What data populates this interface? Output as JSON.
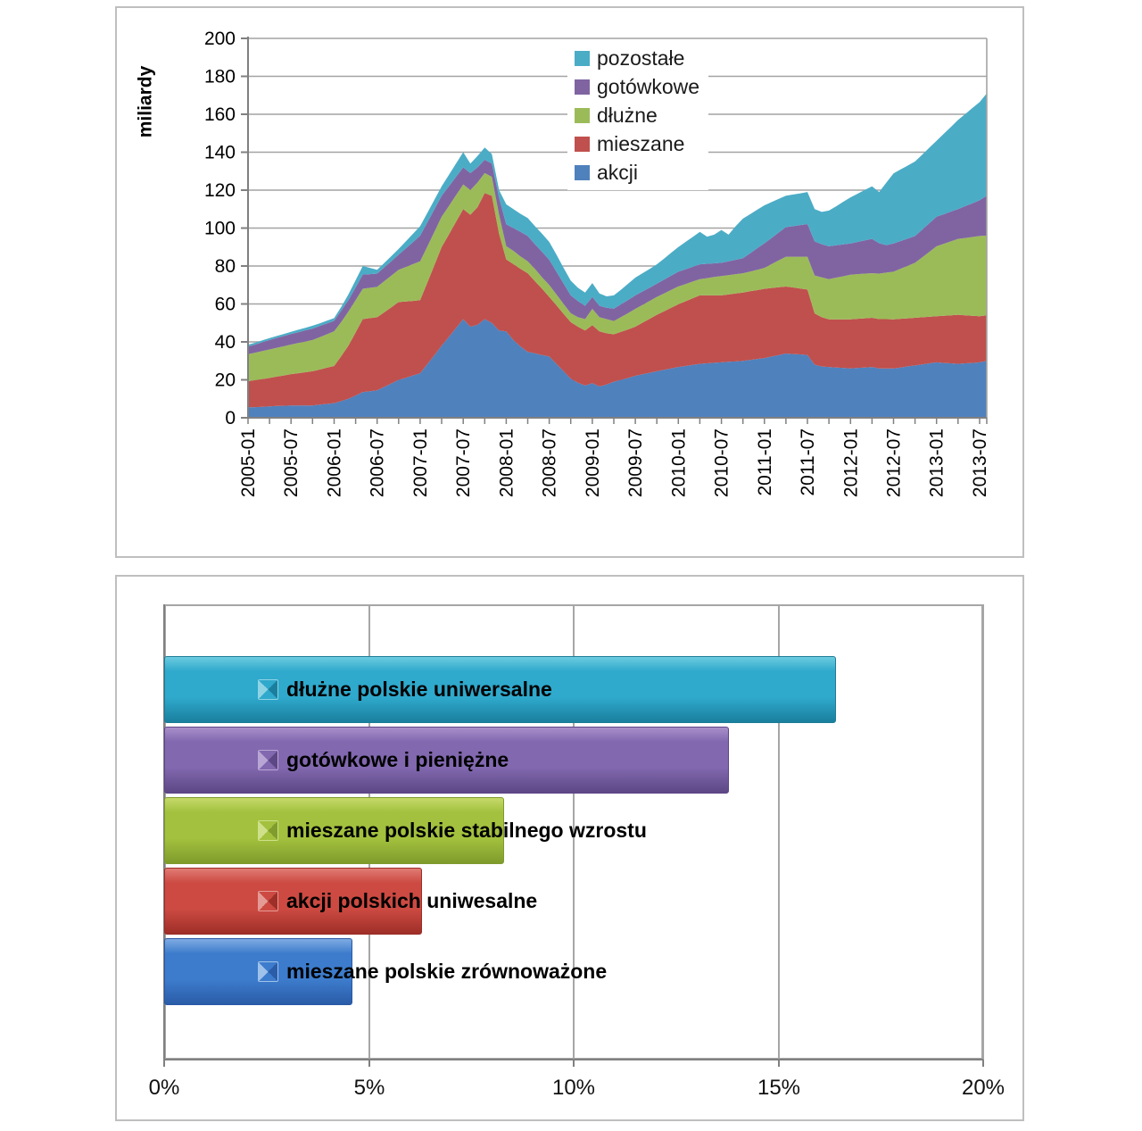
{
  "page": {
    "background": "#FFFFFF"
  },
  "chart_data": [
    {
      "type": "area",
      "stacked": true,
      "title": "",
      "ylabel": "miliardy",
      "xlabel": "",
      "ylim": [
        0,
        200
      ],
      "ytick_step": 20,
      "y_tick_labels": [
        "0",
        "20",
        "40",
        "60",
        "80",
        "100",
        "120",
        "140",
        "160",
        "180",
        "200"
      ],
      "x_tick_labels": [
        "2005-01",
        "2005-07",
        "2006-01",
        "2006-07",
        "2007-01",
        "2007-07",
        "2008-01",
        "2008-07",
        "2009-01",
        "2009-07",
        "2010-01",
        "2010-07",
        "2011-01",
        "2011-07",
        "2012-01",
        "2012-07",
        "2013-01",
        "2013-07"
      ],
      "x_start": "2005-01",
      "x_end": "2013-08",
      "x_months_total": 104,
      "grid": "horizontal",
      "grid_color": "#A3A3A3",
      "axis_color": "#808080",
      "legend_position": "inside-top-center",
      "legend_items": [
        {
          "label": "pozostałe",
          "color": "#4BACC6"
        },
        {
          "label": "gotówkowe",
          "color": "#8064A2"
        },
        {
          "label": "dłużne",
          "color": "#9BBB59"
        },
        {
          "label": "mieszane",
          "color": "#C0504D"
        },
        {
          "label": "akcji",
          "color": "#4F81BD"
        }
      ],
      "series": [
        {
          "name": "akcji",
          "color": "#4F81BD",
          "values": [
            5.5,
            5.6,
            5.8,
            6,
            6.2,
            6.3,
            6.5,
            6.5,
            6.5,
            6.5,
            6.9,
            7.3,
            7.7,
            8.8,
            10,
            11.7,
            13.5,
            14,
            14.5,
            16.3,
            18.1,
            20,
            21.1,
            22.3,
            23.5,
            28.3,
            33.1,
            38,
            42.6,
            47.3,
            52,
            48,
            49,
            52,
            50,
            46,
            45.5,
            41,
            37.5,
            34.7,
            34,
            33.1,
            32.3,
            28.4,
            24.5,
            20.6,
            18.5,
            17,
            18.2,
            16.5,
            17.5,
            19,
            20,
            21,
            22.1,
            22.9,
            23.7,
            24.5,
            25.3,
            26,
            26.8,
            27.3,
            27.9,
            28.4,
            28.7,
            29,
            29.2,
            29.5,
            29.7,
            30,
            30.5,
            31,
            31.5,
            32.3,
            33.1,
            33.9,
            33.6,
            33.4,
            33.1,
            28,
            27,
            26.8,
            26.5,
            26.3,
            26,
            26.3,
            26.5,
            26.8,
            26,
            26,
            26,
            26.5,
            27.1,
            27.6,
            28.1,
            28.7,
            29.2,
            28.9,
            28.7,
            28.4,
            28.7,
            28.9,
            29.2,
            30
          ]
        },
        {
          "name": "mieszane",
          "color": "#C0504D",
          "values": [
            13.8,
            14.2,
            14.6,
            15,
            15.5,
            16,
            16.5,
            17,
            17.5,
            18,
            18.5,
            19.1,
            19.6,
            23.7,
            28,
            33.3,
            38.5,
            38.5,
            38.5,
            39.3,
            40.2,
            41,
            40.2,
            39.3,
            38.5,
            43,
            47.5,
            52,
            54,
            56,
            58,
            59,
            62,
            66.5,
            67,
            51,
            38,
            40,
            41,
            41.5,
            38,
            34.9,
            31.4,
            30.9,
            30.3,
            29.8,
            29.5,
            29,
            30.6,
            29,
            27,
            25,
            25.3,
            25.6,
            25.9,
            27.2,
            28.5,
            29.8,
            30.8,
            32,
            33,
            34.1,
            35.1,
            36.1,
            35.8,
            35.5,
            35.3,
            35.5,
            35.8,
            36,
            36.2,
            36.3,
            36.5,
            36.1,
            35.7,
            35.3,
            35.1,
            34.7,
            34.5,
            27,
            26,
            25.1,
            25.4,
            25.6,
            25.9,
            25.9,
            25.9,
            25.9,
            26,
            26,
            25.9,
            25.7,
            25.3,
            25.1,
            24.9,
            24.5,
            24.3,
            24.9,
            25.3,
            25.9,
            25.3,
            24.9,
            24.3,
            24
          ]
        },
        {
          "name": "dłużne",
          "color": "#9BBB59",
          "values": [
            14.2,
            14.5,
            14.8,
            15,
            15.2,
            15.4,
            15.6,
            15.9,
            16.2,
            16.5,
            17.1,
            17.6,
            18.3,
            18,
            18,
            17,
            16,
            16,
            16,
            16.4,
            16.7,
            17,
            18.2,
            19.4,
            20.5,
            19,
            17.5,
            16,
            15,
            14,
            13,
            13,
            13,
            10.5,
            10,
            10,
            7,
            7,
            6.5,
            6.3,
            6.5,
            6,
            6.3,
            5.7,
            5.2,
            4.7,
            5,
            6,
            8.6,
            7.5,
            7.5,
            7,
            7.8,
            8.6,
            9.4,
            9.4,
            9.4,
            9.4,
            9.4,
            9.4,
            9.4,
            9.1,
            8.8,
            8.6,
            9.1,
            9.7,
            10.2,
            10.2,
            10.2,
            10.2,
            10.4,
            10.7,
            11,
            12.6,
            14.2,
            15.7,
            16.2,
            16.8,
            17.3,
            20,
            21,
            21.2,
            22,
            22.7,
            23.5,
            23.5,
            23.6,
            23.5,
            24,
            24.5,
            25.1,
            26.4,
            27.7,
            29,
            31.6,
            34.3,
            36.9,
            37.9,
            39,
            40,
            40.8,
            41.5,
            42.3,
            42
          ]
        },
        {
          "name": "gotówkowe",
          "color": "#8064A2",
          "values": [
            4,
            4.3,
            4.6,
            5,
            5.2,
            5.4,
            5.6,
            5.7,
            5.9,
            6,
            5.9,
            5.7,
            5.5,
            6,
            6,
            6.7,
            7.5,
            7.2,
            7,
            7.3,
            7.6,
            8,
            9.8,
            11.6,
            13.5,
            12.7,
            11.9,
            11,
            10.4,
            9.7,
            9,
            9,
            8,
            7,
            7,
            9,
            11.5,
            12,
            13,
            13.3,
            13,
            13.5,
            13.3,
            12,
            10.8,
            9.4,
            8.5,
            7,
            6.3,
            6,
            6,
            6.5,
            6.7,
            6.9,
            7.1,
            7.1,
            7,
            7,
            7.3,
            7.5,
            7.8,
            7.8,
            7.8,
            7.8,
            7.6,
            7.2,
            7,
            7.3,
            7.6,
            7.9,
            9.6,
            11.4,
            13,
            13.8,
            14.7,
            15.6,
            16.1,
            16.7,
            17.2,
            18,
            17.5,
            17.3,
            17,
            16.8,
            16.5,
            17,
            17.5,
            18.1,
            16,
            14.5,
            14.9,
            14.6,
            14.4,
            14.1,
            14.6,
            15.1,
            15.6,
            15.6,
            15.7,
            15.7,
            16.8,
            17.8,
            18.9,
            21
          ]
        },
        {
          "name": "pozostałe",
          "color": "#4BACC6",
          "values": [
            1,
            1,
            1,
            1,
            1,
            1.1,
            1.1,
            1.3,
            1.3,
            1.5,
            1.4,
            1.5,
            1.4,
            2,
            3,
            3.8,
            4.5,
            3.3,
            2,
            2.3,
            2.7,
            3,
            3.7,
            4.4,
            5,
            5,
            5,
            5,
            6,
            7,
            8,
            5,
            6,
            6.5,
            5,
            4,
            10.5,
            10,
            9.5,
            9.5,
            9.5,
            9.5,
            9.4,
            9,
            8.2,
            7.8,
            7,
            7,
            7.3,
            6.5,
            6,
            7,
            7.7,
            8.6,
            9.4,
            9.6,
            9.9,
            10.2,
            11.1,
            12.1,
            13,
            14.4,
            15.7,
            17.1,
            14.3,
            15.1,
            17.3,
            14,
            17.7,
            20.9,
            20.6,
            20.3,
            20,
            18.9,
            17.7,
            16.6,
            16.7,
            16.7,
            16.9,
            17,
            17,
            18.8,
            20.6,
            22.5,
            24.3,
            25.4,
            26.6,
            27.7,
            27,
            33,
            36.9,
            37.7,
            38.5,
            39.3,
            39.5,
            39.8,
            40,
            42.4,
            44.6,
            47,
            48.5,
            50.2,
            51.7,
            54
          ]
        }
      ]
    },
    {
      "type": "bar",
      "orientation": "horizontal",
      "title": "",
      "unit": "%",
      "xlim": [
        0,
        20
      ],
      "x_tick_labels": [
        "0%",
        "5%",
        "10%",
        "15%",
        "20%"
      ],
      "x_tick_values": [
        0,
        5,
        10,
        15,
        20
      ],
      "grid": "vertical",
      "categories": [
        "dłużne polskie uniwersalne",
        "gotówkowe i pieniężne",
        "mieszane polskie stabilnego wzrostu",
        "akcji polskich uniwesalne",
        "mieszane polskie zrównoważone"
      ],
      "values": [
        16.4,
        13.8,
        8.3,
        6.3,
        4.6
      ],
      "bars": [
        {
          "label": "dłużne polskie uniwersalne",
          "value": 16.4,
          "color_light": "#6CCBE0",
          "color_main": "#2FA9CC",
          "color_dark": "#1A7F9E",
          "color_border": "#1D7C96",
          "marker_color": "#8ED4E4"
        },
        {
          "label": "gotówkowe i pieniężne",
          "value": 13.8,
          "color_light": "#A98FC9",
          "color_main": "#8168AF",
          "color_dark": "#5D4784",
          "color_border": "#5C4487",
          "marker_color": "#B9A6D4"
        },
        {
          "label": "mieszane polskie stabilnego wzrostu",
          "value": 8.3,
          "color_light": "#C5D96A",
          "color_main": "#A3C13E",
          "color_dark": "#7F9C2C",
          "color_border": "#7E9A2D",
          "marker_color": "#CFE08A"
        },
        {
          "label": "akcji polskich uniwesalne",
          "value": 6.3,
          "color_light": "#E07B74",
          "color_main": "#CC4A42",
          "color_dark": "#9E2F28",
          "color_border": "#9C2D27",
          "marker_color": "#E49B96"
        },
        {
          "label": "mieszane polskie zrównoważone",
          "value": 4.6,
          "color_light": "#7FABE3",
          "color_main": "#3D7CCC",
          "color_dark": "#2A5CA8",
          "color_border": "#2A57A5",
          "marker_color": "#9FC2EA"
        }
      ]
    }
  ]
}
